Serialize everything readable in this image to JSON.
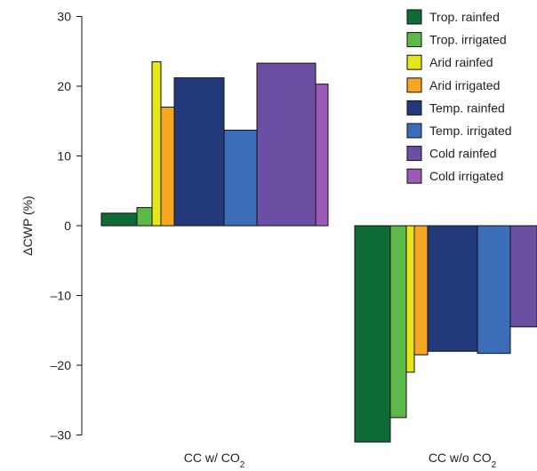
{
  "chart_data": {
    "type": "bar",
    "ylabel": "ΔCWP (%)",
    "ylim": [
      -30,
      30
    ],
    "yticks": [
      30,
      20,
      10,
      0,
      -10,
      -20,
      -30
    ],
    "ytick_labels": [
      "30",
      "20",
      "10",
      "0",
      "–10",
      "–20",
      "–30"
    ],
    "categories": [
      {
        "label": "CC w/ CO",
        "subscript": "2"
      },
      {
        "label": "CC w/o CO",
        "subscript": "2"
      }
    ],
    "legend_position": "top-right",
    "series": [
      {
        "name": "Trop. rainfed",
        "color": "#0f6b35",
        "values": [
          1.8,
          -31
        ]
      },
      {
        "name": "Trop. irrigated",
        "color": "#5db84a",
        "values": [
          2.6,
          -27.5
        ]
      },
      {
        "name": "Arid rainfed",
        "color": "#e6e619",
        "values": [
          23.5,
          -21
        ]
      },
      {
        "name": "Arid irrigated",
        "color": "#f5a623",
        "values": [
          17,
          -18.5
        ]
      },
      {
        "name": "Temp. rainfed",
        "color": "#233a7a",
        "values": [
          21.2,
          -18
        ]
      },
      {
        "name": "Temp. irrigated",
        "color": "#3b6db8",
        "values": [
          13.7,
          -18.3
        ]
      },
      {
        "name": "Cold rainfed",
        "color": "#6a4fa3",
        "values": [
          23.3,
          -14.5
        ]
      },
      {
        "name": "Cold irrigated",
        "color": "#9a5ab5",
        "values": [
          20.3,
          null
        ]
      }
    ]
  }
}
